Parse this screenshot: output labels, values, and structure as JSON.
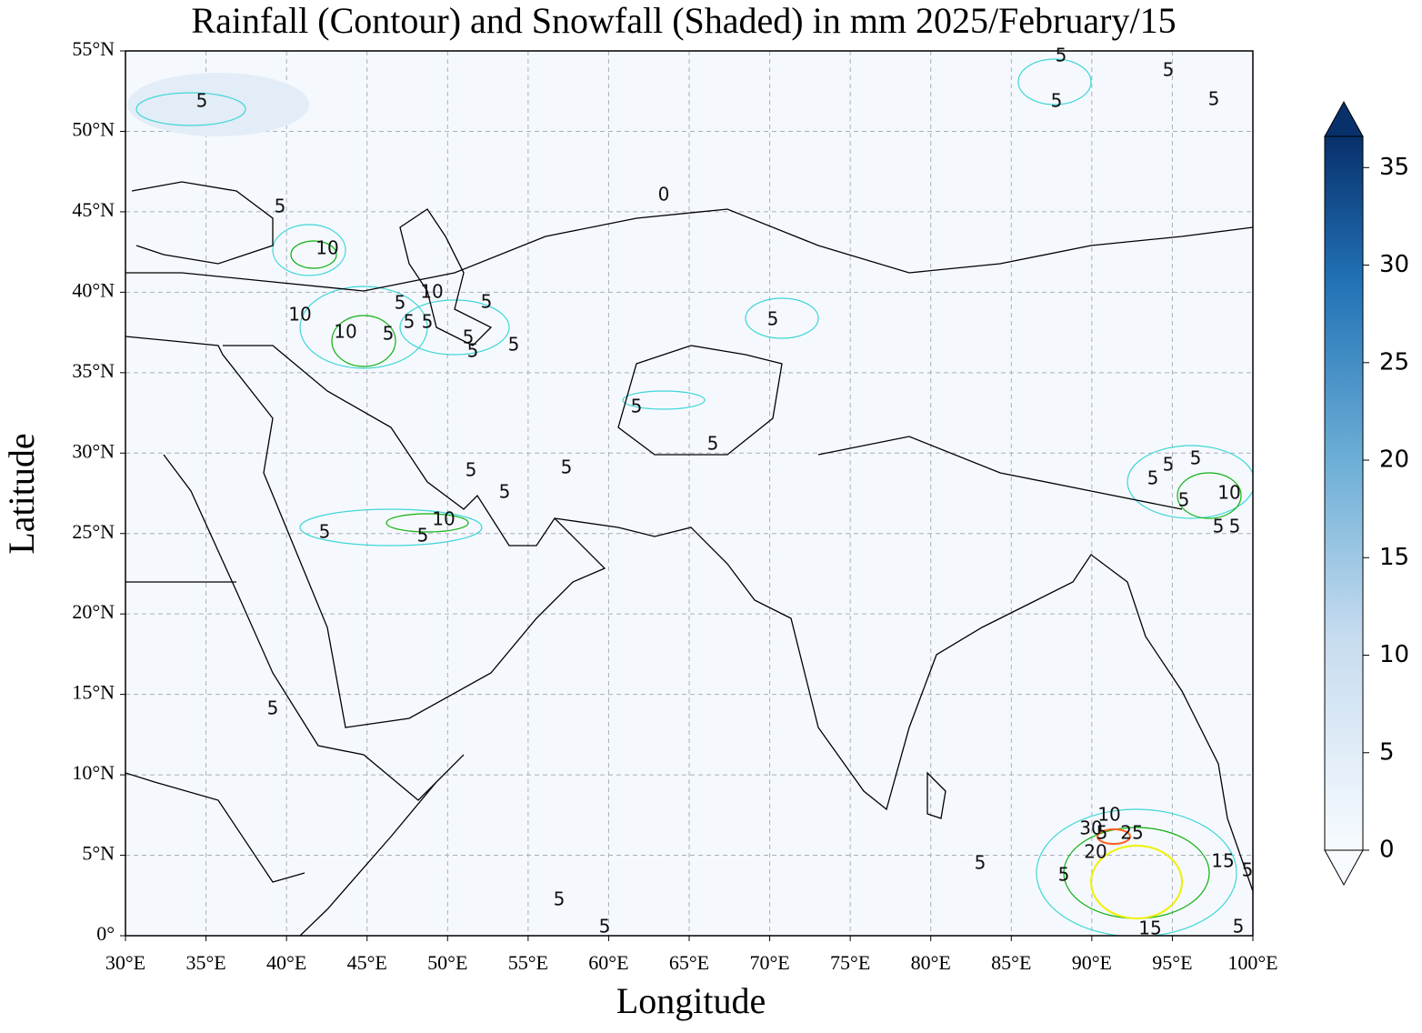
{
  "chart_data": {
    "type": "map",
    "title": "Rainfall (Contour) and Snowfall (Shaded) in mm  2025/February/15",
    "x_label": "Longitude",
    "y_label": "Latitude",
    "xlim": [
      30,
      100
    ],
    "ylim": [
      0,
      55
    ],
    "xticks": [
      {
        "value": 30,
        "label": "30°E"
      },
      {
        "value": 35,
        "label": "35°E"
      },
      {
        "value": 40,
        "label": "40°E"
      },
      {
        "value": 45,
        "label": "45°E"
      },
      {
        "value": 50,
        "label": "50°E"
      },
      {
        "value": 55,
        "label": "55°E"
      },
      {
        "value": 60,
        "label": "60°E"
      },
      {
        "value": 65,
        "label": "65°E"
      },
      {
        "value": 70,
        "label": "70°E"
      },
      {
        "value": 75,
        "label": "75°E"
      },
      {
        "value": 80,
        "label": "80°E"
      },
      {
        "value": 85,
        "label": "85°E"
      },
      {
        "value": 90,
        "label": "90°E"
      },
      {
        "value": 95,
        "label": "95°E"
      },
      {
        "value": 100,
        "label": "100°E"
      }
    ],
    "yticks": [
      {
        "value": 0,
        "label": "0°"
      },
      {
        "value": 5,
        "label": "5°N"
      },
      {
        "value": 10,
        "label": "10°N"
      },
      {
        "value": 15,
        "label": "15°N"
      },
      {
        "value": 20,
        "label": "20°N"
      },
      {
        "value": 25,
        "label": "25°N"
      },
      {
        "value": 30,
        "label": "30°N"
      },
      {
        "value": 35,
        "label": "35°N"
      },
      {
        "value": 40,
        "label": "40°N"
      },
      {
        "value": 45,
        "label": "45°N"
      },
      {
        "value": 50,
        "label": "50°N"
      },
      {
        "value": 55,
        "label": "55°N"
      }
    ],
    "grid": true,
    "colorbar": {
      "lim": [
        0,
        36.6
      ],
      "ticks": [
        0,
        5,
        10,
        15,
        20,
        25,
        30,
        35
      ],
      "color_low": "#f7fbff",
      "color_high": "#08306b"
    },
    "contour_labels": [
      5,
      5,
      10,
      10,
      10,
      5,
      5,
      5,
      10,
      5,
      5,
      5,
      5,
      5,
      5,
      5,
      5,
      5,
      5,
      5,
      10,
      5,
      5,
      5,
      5,
      5,
      5,
      5,
      5,
      5,
      5,
      5,
      10,
      5,
      5,
      10,
      30,
      5,
      25,
      20,
      5,
      5,
      15,
      5,
      15,
      5,
      5,
      5,
      0
    ]
  }
}
